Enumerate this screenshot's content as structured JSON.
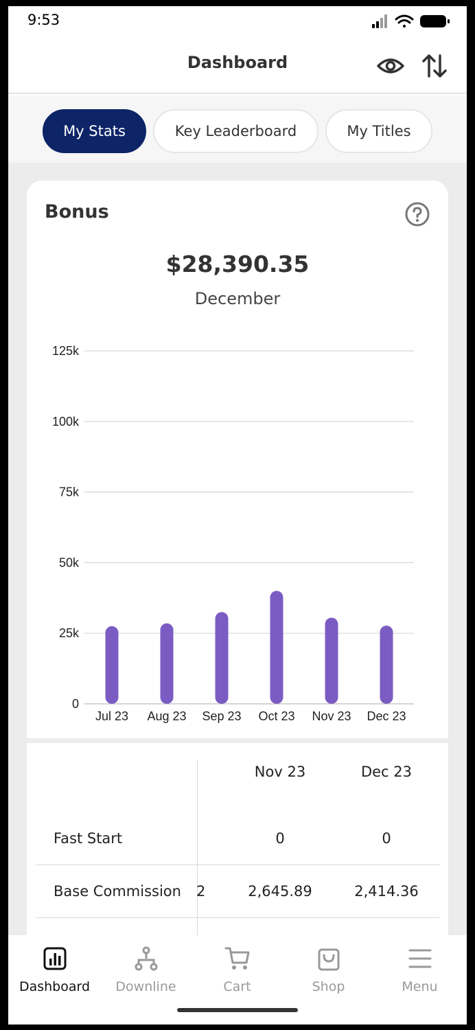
{
  "status": {
    "time": "9:53"
  },
  "header": {
    "title": "Dashboard"
  },
  "tabs": [
    {
      "label": "My Stats",
      "active": true
    },
    {
      "label": "Key Leaderboard",
      "active": false
    },
    {
      "label": "My Titles",
      "active": false
    }
  ],
  "bonus": {
    "title": "Bonus",
    "amount": "$28,390.35",
    "month": "December"
  },
  "chart_data": {
    "type": "bar",
    "categories": [
      "Jul 23",
      "Aug 23",
      "Sep 23",
      "Oct 23",
      "Nov 23",
      "Dec 23"
    ],
    "values": [
      27500,
      28500,
      32500,
      40000,
      30500,
      27700
    ],
    "yticks": [
      "0",
      "25k",
      "50k",
      "75k",
      "100k",
      "125k"
    ],
    "ylim": [
      0,
      125000
    ],
    "grid": true,
    "bar_color": "#7b5cc3",
    "title": "",
    "xlabel": "",
    "ylabel": ""
  },
  "table": {
    "columns": [
      "Nov 23",
      "Dec 23"
    ],
    "rows": [
      {
        "label": "Fast Start",
        "values": [
          "0",
          "0"
        ],
        "clipped": ""
      },
      {
        "label": "Base Commission",
        "values": [
          "2,645.89",
          "2,414.36"
        ],
        "clipped": "2"
      }
    ]
  },
  "nav": [
    {
      "label": "Dashboard",
      "icon": "bar-chart-icon",
      "active": true
    },
    {
      "label": "Downline",
      "icon": "hierarchy-icon",
      "active": false
    },
    {
      "label": "Cart",
      "icon": "cart-icon",
      "active": false
    },
    {
      "label": "Shop",
      "icon": "shopping-bag-icon",
      "active": false
    },
    {
      "label": "Menu",
      "icon": "hamburger-menu-icon",
      "active": false
    }
  ],
  "colors": {
    "primary": "#0d2467",
    "accent": "#7b5cc3"
  }
}
